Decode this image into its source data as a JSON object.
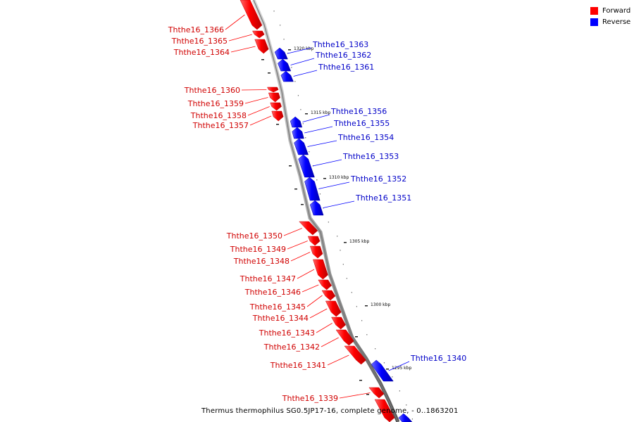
{
  "legend": {
    "forward_label": "Forward",
    "reverse_label": "Reverse",
    "forward_color": "#ff0000",
    "reverse_color": "#0000ff"
  },
  "caption": "Thermus thermophilus SG0.5JP17-16, complete genome, - 0..1863201",
  "backbone_color": "#999999",
  "scale": {
    "unit": "kbp",
    "labels": [
      {
        "kbp": 1320,
        "text": "1320 kbp"
      },
      {
        "kbp": 1315,
        "text": "1315 kbp"
      },
      {
        "kbp": 1310,
        "text": "1310 kbp"
      },
      {
        "kbp": 1305,
        "text": "1305 kbp"
      },
      {
        "kbp": 1300,
        "text": "1300 kbp"
      },
      {
        "kbp": 1295,
        "text": "1295 kbp"
      }
    ]
  },
  "genes": {
    "forward": [
      {
        "name": "Ththe16_1366",
        "strand": "+"
      },
      {
        "name": "Ththe16_1365",
        "strand": "+"
      },
      {
        "name": "Ththe16_1364",
        "strand": "+"
      },
      {
        "name": "Ththe16_1360",
        "strand": "+"
      },
      {
        "name": "Ththe16_1359",
        "strand": "+"
      },
      {
        "name": "Ththe16_1358",
        "strand": "+"
      },
      {
        "name": "Ththe16_1357",
        "strand": "+"
      },
      {
        "name": "Ththe16_1350",
        "strand": "+"
      },
      {
        "name": "Ththe16_1349",
        "strand": "+"
      },
      {
        "name": "Ththe16_1348",
        "strand": "+"
      },
      {
        "name": "Ththe16_1347",
        "strand": "+"
      },
      {
        "name": "Ththe16_1346",
        "strand": "+"
      },
      {
        "name": "Ththe16_1345",
        "strand": "+"
      },
      {
        "name": "Ththe16_1344",
        "strand": "+"
      },
      {
        "name": "Ththe16_1343",
        "strand": "+"
      },
      {
        "name": "Ththe16_1342",
        "strand": "+"
      },
      {
        "name": "Ththe16_1341",
        "strand": "+"
      },
      {
        "name": "Ththe16_1339",
        "strand": "+"
      }
    ],
    "reverse": [
      {
        "name": "Ththe16_1363",
        "strand": "-"
      },
      {
        "name": "Ththe16_1362",
        "strand": "-"
      },
      {
        "name": "Ththe16_1361",
        "strand": "-"
      },
      {
        "name": "Ththe16_1356",
        "strand": "-"
      },
      {
        "name": "Ththe16_1355",
        "strand": "-"
      },
      {
        "name": "Ththe16_1354",
        "strand": "-"
      },
      {
        "name": "Ththe16_1353",
        "strand": "-"
      },
      {
        "name": "Ththe16_1352",
        "strand": "-"
      },
      {
        "name": "Ththe16_1351",
        "strand": "-"
      },
      {
        "name": "Ththe16_1340",
        "strand": "-"
      }
    ]
  }
}
